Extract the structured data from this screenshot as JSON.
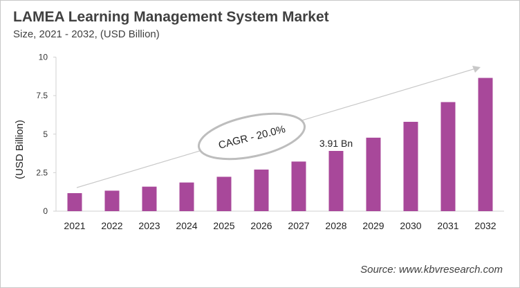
{
  "chart_data": {
    "type": "bar",
    "title": "LAMEA Learning Management System Market",
    "subtitle": "Size, 2021 - 2032, (USD Billion)",
    "xlabel": "",
    "ylabel": "(USD Billion)",
    "categories": [
      "2021",
      "2022",
      "2023",
      "2024",
      "2025",
      "2026",
      "2027",
      "2028",
      "2029",
      "2030",
      "2031",
      "2032"
    ],
    "values": [
      1.17,
      1.33,
      1.59,
      1.86,
      2.23,
      2.7,
      3.22,
      3.91,
      4.77,
      5.8,
      7.08,
      8.65
    ],
    "ylim": [
      0,
      10
    ],
    "yticks": [
      "0",
      "2.5",
      "5",
      "7.5",
      "10"
    ],
    "ytick_values": [
      0,
      2.5,
      5,
      7.5,
      10
    ],
    "grid": false,
    "bar_color": "#A8489A",
    "annotations": {
      "data_label": {
        "category": "2028",
        "text": "3.91 Bn"
      },
      "cagr": "CAGR - 20.0%"
    },
    "source": "Source: www.kbvresearch.com"
  }
}
